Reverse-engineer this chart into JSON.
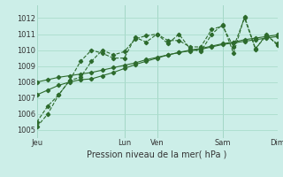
{
  "background_color": "#cceee8",
  "grid_color": "#aaddcc",
  "line_color": "#2d6b2d",
  "title": "Pression niveau de la mer( hPa )",
  "ylabel_ticks": [
    1005,
    1006,
    1007,
    1008,
    1009,
    1010,
    1011,
    1012
  ],
  "xlim": [
    0,
    22
  ],
  "ylim": [
    1004.5,
    1012.8
  ],
  "xtick_positions": [
    0,
    8,
    11,
    17,
    22
  ],
  "xtick_labels": [
    "Jeu",
    "Lun",
    "Ven",
    "Sam",
    "Dim"
  ],
  "series": [
    {
      "x": [
        0,
        1,
        2,
        3,
        4,
        5,
        6,
        7,
        8,
        9,
        10,
        11,
        12,
        13,
        14,
        15,
        16,
        17,
        18,
        19,
        20,
        21,
        22
      ],
      "y": [
        1005.2,
        1006.0,
        1007.2,
        1008.1,
        1009.3,
        1010.0,
        1009.8,
        1009.5,
        1009.5,
        1010.8,
        1010.5,
        1011.0,
        1010.6,
        1010.6,
        1010.2,
        1010.2,
        1011.3,
        1011.5,
        1010.2,
        1012.0,
        1010.05,
        1011.0,
        1010.3
      ]
    },
    {
      "x": [
        0,
        1,
        2,
        3,
        4,
        5,
        6,
        7,
        8,
        9,
        10,
        11,
        12,
        13,
        14,
        15,
        16,
        17,
        18,
        19,
        20,
        21,
        22
      ],
      "y": [
        1005.5,
        1006.5,
        1007.2,
        1008.1,
        1008.3,
        1009.3,
        1010.0,
        1009.7,
        1009.9,
        1010.7,
        1010.9,
        1011.0,
        1010.4,
        1011.0,
        1010.1,
        1009.9,
        1011.0,
        1011.6,
        1009.8,
        1012.1,
        1010.1,
        1010.9,
        1010.4
      ]
    },
    {
      "x": [
        0,
        1,
        2,
        3,
        4,
        5,
        6,
        7,
        8,
        9,
        10,
        11,
        12,
        13,
        14,
        15,
        16,
        17,
        18,
        19,
        20,
        21,
        22
      ],
      "y": [
        1007.2,
        1007.5,
        1007.8,
        1008.0,
        1008.15,
        1008.2,
        1008.4,
        1008.6,
        1008.85,
        1009.1,
        1009.3,
        1009.5,
        1009.7,
        1009.85,
        1010.0,
        1010.1,
        1010.25,
        1010.4,
        1010.5,
        1010.65,
        1010.75,
        1010.85,
        1010.95
      ]
    },
    {
      "x": [
        0,
        1,
        2,
        3,
        4,
        5,
        6,
        7,
        8,
        9,
        10,
        11,
        12,
        13,
        14,
        15,
        16,
        17,
        18,
        19,
        20,
        21,
        22
      ],
      "y": [
        1008.0,
        1008.15,
        1008.3,
        1008.4,
        1008.5,
        1008.6,
        1008.75,
        1008.9,
        1009.05,
        1009.2,
        1009.4,
        1009.55,
        1009.7,
        1009.85,
        1009.95,
        1010.05,
        1010.2,
        1010.35,
        1010.45,
        1010.55,
        1010.65,
        1010.75,
        1010.85
      ]
    }
  ]
}
